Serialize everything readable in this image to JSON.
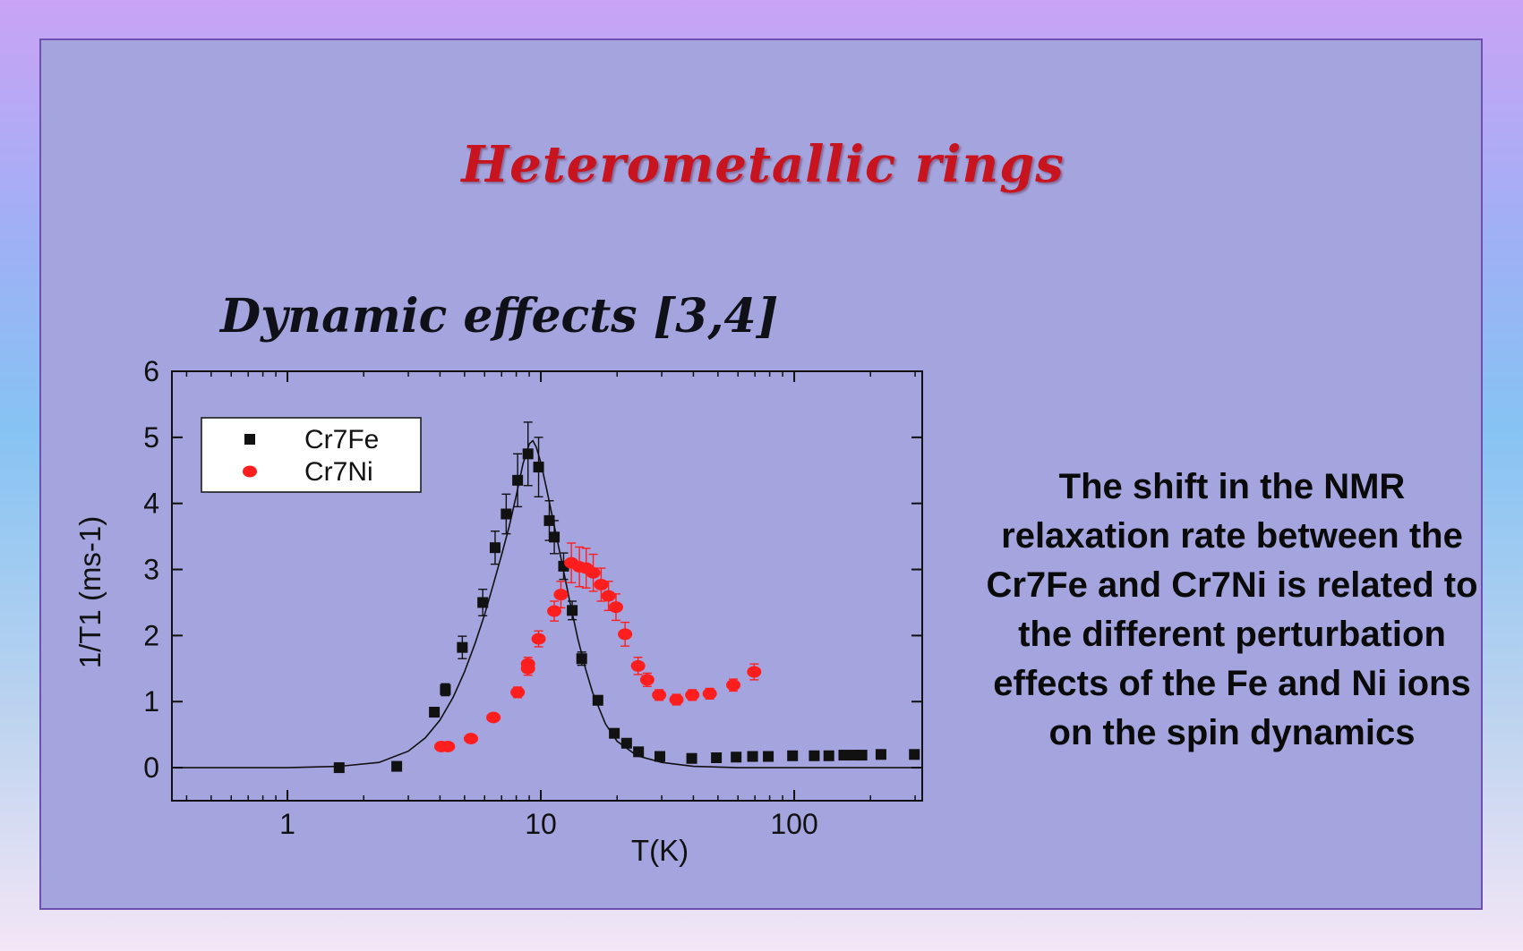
{
  "slide": {
    "title": "Heterometallic rings",
    "subtitle": "Dynamic effects [3,4]",
    "description": "The shift  in the NMR relaxation rate between the  Cr7Fe and Cr7Ni is related to the different perturbation effects of the Fe and Ni ions on the spin dynamics"
  },
  "chart_data": {
    "type": "scatter",
    "xscale": "log",
    "xlim": [
      0.35,
      320
    ],
    "ylim": [
      -0.5,
      6
    ],
    "xlabel": "T(K)",
    "ylabel": "1/T1 (ms-1)",
    "xticks": [
      1,
      10,
      100
    ],
    "xtick_labels": [
      "1",
      "10",
      "100"
    ],
    "yticks": [
      0,
      1,
      2,
      3,
      4,
      5,
      6
    ],
    "ytick_labels": [
      "0",
      "1",
      "2",
      "3",
      "4",
      "5",
      "6"
    ],
    "legend_position": "top-left",
    "series": [
      {
        "name": "Cr7Fe",
        "marker": "square",
        "color": "#111111",
        "points": [
          {
            "x": 1.6,
            "y": 0.0,
            "err": 0
          },
          {
            "x": 2.7,
            "y": 0.02,
            "err": 0
          },
          {
            "x": 3.8,
            "y": 0.84,
            "err": 0.07
          },
          {
            "x": 4.2,
            "y": 1.18,
            "err": 0.09
          },
          {
            "x": 4.9,
            "y": 1.82,
            "err": 0.17
          },
          {
            "x": 5.9,
            "y": 2.5,
            "err": 0.2
          },
          {
            "x": 6.6,
            "y": 3.33,
            "err": 0.25
          },
          {
            "x": 7.3,
            "y": 3.84,
            "err": 0.3
          },
          {
            "x": 8.1,
            "y": 4.35,
            "err": 0.4
          },
          {
            "x": 8.9,
            "y": 4.75,
            "err": 0.48
          },
          {
            "x": 9.8,
            "y": 4.55,
            "err": 0.45
          },
          {
            "x": 10.8,
            "y": 3.74,
            "err": 0.3
          },
          {
            "x": 11.3,
            "y": 3.49,
            "err": 0.25
          },
          {
            "x": 12.3,
            "y": 3.05,
            "err": 0.2
          },
          {
            "x": 13.3,
            "y": 2.38,
            "err": 0.14
          },
          {
            "x": 14.5,
            "y": 1.65,
            "err": 0.1
          },
          {
            "x": 16.8,
            "y": 1.02,
            "err": 0.07
          },
          {
            "x": 19.5,
            "y": 0.52,
            "err": 0.04
          },
          {
            "x": 21.8,
            "y": 0.37,
            "err": 0.03
          },
          {
            "x": 24.3,
            "y": 0.24,
            "err": 0
          },
          {
            "x": 29.5,
            "y": 0.17,
            "err": 0
          },
          {
            "x": 39.4,
            "y": 0.14,
            "err": 0
          },
          {
            "x": 49.3,
            "y": 0.15,
            "err": 0
          },
          {
            "x": 59,
            "y": 0.16,
            "err": 0
          },
          {
            "x": 68.5,
            "y": 0.17,
            "err": 0
          },
          {
            "x": 79,
            "y": 0.17,
            "err": 0
          },
          {
            "x": 98.5,
            "y": 0.18,
            "err": 0
          },
          {
            "x": 120,
            "y": 0.18,
            "err": 0
          },
          {
            "x": 137,
            "y": 0.18,
            "err": 0
          },
          {
            "x": 157,
            "y": 0.19,
            "err": 0
          },
          {
            "x": 173,
            "y": 0.19,
            "err": 0
          },
          {
            "x": 185,
            "y": 0.19,
            "err": 0
          },
          {
            "x": 220,
            "y": 0.2,
            "err": 0
          },
          {
            "x": 298,
            "y": 0.2,
            "err": 0
          }
        ]
      },
      {
        "name": "Cr7Ni",
        "marker": "circle",
        "color": "#ff1e1e",
        "points": [
          {
            "x": 4.05,
            "y": 0.32,
            "err": 0
          },
          {
            "x": 4.3,
            "y": 0.32,
            "err": 0
          },
          {
            "x": 5.3,
            "y": 0.44,
            "err": 0
          },
          {
            "x": 6.5,
            "y": 0.76,
            "err": 0.05
          },
          {
            "x": 8.1,
            "y": 1.14,
            "err": 0.08
          },
          {
            "x": 8.9,
            "y": 1.5,
            "err": 0.1
          },
          {
            "x": 8.9,
            "y": 1.57,
            "err": 0.1
          },
          {
            "x": 9.8,
            "y": 1.95,
            "err": 0.12
          },
          {
            "x": 11.3,
            "y": 2.37,
            "err": 0.15
          },
          {
            "x": 12.0,
            "y": 2.62,
            "err": 0.2
          },
          {
            "x": 13.2,
            "y": 3.1,
            "err": 0.3
          },
          {
            "x": 14.2,
            "y": 3.04,
            "err": 0.3
          },
          {
            "x": 15.1,
            "y": 3.02,
            "err": 0.3
          },
          {
            "x": 16.1,
            "y": 2.95,
            "err": 0.28
          },
          {
            "x": 17.3,
            "y": 2.77,
            "err": 0.25
          },
          {
            "x": 18.5,
            "y": 2.6,
            "err": 0.22
          },
          {
            "x": 19.8,
            "y": 2.43,
            "err": 0.2
          },
          {
            "x": 21.5,
            "y": 2.02,
            "err": 0.18
          },
          {
            "x": 24.2,
            "y": 1.54,
            "err": 0.13
          },
          {
            "x": 26.3,
            "y": 1.33,
            "err": 0.1
          },
          {
            "x": 29.3,
            "y": 1.1,
            "err": 0.08
          },
          {
            "x": 34.3,
            "y": 1.03,
            "err": 0.08
          },
          {
            "x": 39.6,
            "y": 1.1,
            "err": 0.08
          },
          {
            "x": 46.4,
            "y": 1.12,
            "err": 0.08
          },
          {
            "x": 57.5,
            "y": 1.25,
            "err": 0.09
          },
          {
            "x": 69.5,
            "y": 1.45,
            "err": 0.12
          }
        ]
      }
    ],
    "fit_curve": [
      [
        0.35,
        0.0
      ],
      [
        1.0,
        0.0
      ],
      [
        1.6,
        0.02
      ],
      [
        2.3,
        0.08
      ],
      [
        3.0,
        0.25
      ],
      [
        3.5,
        0.45
      ],
      [
        4.0,
        0.72
      ],
      [
        4.5,
        1.06
      ],
      [
        5.0,
        1.45
      ],
      [
        5.5,
        1.88
      ],
      [
        6.0,
        2.32
      ],
      [
        6.5,
        2.78
      ],
      [
        7.0,
        3.22
      ],
      [
        7.5,
        3.65
      ],
      [
        8.0,
        4.12
      ],
      [
        8.5,
        4.6
      ],
      [
        9.0,
        4.9
      ],
      [
        9.3,
        4.95
      ],
      [
        9.6,
        4.85
      ],
      [
        10.0,
        4.62
      ],
      [
        10.5,
        4.25
      ],
      [
        11.0,
        3.88
      ],
      [
        12.0,
        3.18
      ],
      [
        13.0,
        2.52
      ],
      [
        14.0,
        1.95
      ],
      [
        15.0,
        1.5
      ],
      [
        16.0,
        1.14
      ],
      [
        18.0,
        0.66
      ],
      [
        20.0,
        0.4
      ],
      [
        24.0,
        0.18
      ],
      [
        30.0,
        0.08
      ],
      [
        40.0,
        0.02
      ],
      [
        60.0,
        0.0
      ],
      [
        320.0,
        0.0
      ]
    ]
  }
}
